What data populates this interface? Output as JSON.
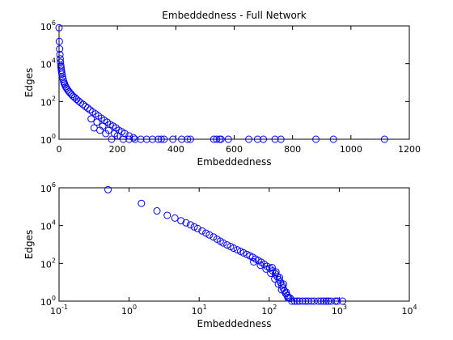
{
  "chart_data": [
    {
      "type": "scatter",
      "title": "Embeddedness - Full Network",
      "xlabel": "Embeddedness",
      "ylabel": "Edges",
      "x_scale": "linear",
      "y_scale": "log",
      "xlim": [
        0,
        1200
      ],
      "ylim": [
        1,
        1000000
      ],
      "x_ticks": [
        "0",
        "200",
        "400",
        "600",
        "800",
        "1000",
        "1200"
      ],
      "y_ticks": [
        {
          "base": "10",
          "exp": "0"
        },
        {
          "base": "10",
          "exp": "2"
        },
        {
          "base": "10",
          "exp": "4"
        },
        {
          "base": "10",
          "exp": "6"
        }
      ],
      "marker": "open-circle",
      "marker_color": "#0000ff",
      "series": [
        {
          "points": [
            [
              0,
              800000
            ],
            [
              1,
              150000
            ],
            [
              2,
              60000
            ],
            [
              3,
              30000
            ],
            [
              4,
              18000
            ],
            [
              5,
              12000
            ],
            [
              6,
              8000
            ],
            [
              7,
              6000
            ],
            [
              8,
              4500
            ],
            [
              9,
              3500
            ],
            [
              10,
              2800
            ],
            [
              12,
              2000
            ],
            [
              14,
              1500
            ],
            [
              16,
              1100
            ],
            [
              18,
              900
            ],
            [
              20,
              750
            ],
            [
              23,
              600
            ],
            [
              26,
              500
            ],
            [
              30,
              400
            ],
            [
              34,
              330
            ],
            [
              38,
              280
            ],
            [
              43,
              230
            ],
            [
              48,
              190
            ],
            [
              54,
              160
            ],
            [
              60,
              130
            ],
            [
              67,
              105
            ],
            [
              74,
              85
            ],
            [
              82,
              70
            ],
            [
              90,
              55
            ],
            [
              98,
              45
            ],
            [
              106,
              36
            ],
            [
              115,
              28
            ],
            [
              125,
              22
            ],
            [
              135,
              17
            ],
            [
              145,
              13
            ],
            [
              155,
              10
            ],
            [
              165,
              8
            ],
            [
              175,
              6
            ],
            [
              185,
              5
            ],
            [
              195,
              4
            ],
            [
              205,
              3
            ],
            [
              215,
              2.5
            ],
            [
              225,
              2
            ],
            [
              240,
              1.5
            ],
            [
              255,
              1.2
            ],
            [
              110,
              12
            ],
            [
              130,
              8
            ],
            [
              150,
              5
            ],
            [
              170,
              3
            ],
            [
              190,
              2
            ],
            [
              120,
              4
            ],
            [
              140,
              3
            ],
            [
              160,
              2
            ],
            [
              200,
              1.5
            ],
            [
              180,
              1
            ],
            [
              220,
              1
            ],
            [
              240,
              1
            ],
            [
              260,
              1
            ],
            [
              280,
              1
            ],
            [
              300,
              1
            ],
            [
              320,
              1
            ],
            [
              340,
              1
            ],
            [
              350,
              1
            ],
            [
              360,
              1
            ],
            [
              390,
              1
            ],
            [
              420,
              1
            ],
            [
              440,
              1
            ],
            [
              450,
              1
            ],
            [
              530,
              1
            ],
            [
              540,
              1
            ],
            [
              550,
              1
            ],
            [
              555,
              1
            ],
            [
              580,
              1
            ],
            [
              650,
              1
            ],
            [
              680,
              1
            ],
            [
              700,
              1
            ],
            [
              740,
              1
            ],
            [
              760,
              1
            ],
            [
              880,
              1
            ],
            [
              940,
              1
            ],
            [
              1115,
              1
            ]
          ]
        }
      ]
    },
    {
      "type": "scatter",
      "title": "",
      "xlabel": "Embeddedness",
      "ylabel": "Edges",
      "x_scale": "log",
      "y_scale": "log",
      "xlim": [
        0.1,
        10000
      ],
      "ylim": [
        1,
        1000000
      ],
      "x_ticks": [
        {
          "base": "10",
          "exp": "-1"
        },
        {
          "base": "10",
          "exp": "0"
        },
        {
          "base": "10",
          "exp": "1"
        },
        {
          "base": "10",
          "exp": "2"
        },
        {
          "base": "10",
          "exp": "3"
        },
        {
          "base": "10",
          "exp": "4"
        }
      ],
      "y_ticks": [
        {
          "base": "10",
          "exp": "0"
        },
        {
          "base": "10",
          "exp": "2"
        },
        {
          "base": "10",
          "exp": "4"
        },
        {
          "base": "10",
          "exp": "6"
        }
      ],
      "marker": "open-circle",
      "marker_color": "#0000ff",
      "series": [
        {
          "points": [
            [
              0.5,
              800000
            ],
            [
              1.5,
              150000
            ],
            [
              2.5,
              60000
            ],
            [
              3.5,
              35000
            ],
            [
              4.5,
              25000
            ],
            [
              5.5,
              18000
            ],
            [
              6.5,
              14000
            ],
            [
              7.5,
              11000
            ],
            [
              8.5,
              8500
            ],
            [
              9.5,
              7000
            ],
            [
              11,
              5200
            ],
            [
              12.5,
              4000
            ],
            [
              14,
              3200
            ],
            [
              16,
              2500
            ],
            [
              18,
              1900
            ],
            [
              20,
              1500
            ],
            [
              22,
              1200
            ],
            [
              25,
              950
            ],
            [
              28,
              780
            ],
            [
              31,
              640
            ],
            [
              35,
              520
            ],
            [
              39,
              430
            ],
            [
              43,
              360
            ],
            [
              48,
              300
            ],
            [
              53,
              250
            ],
            [
              58,
              210
            ],
            [
              64,
              170
            ],
            [
              70,
              140
            ],
            [
              77,
              115
            ],
            [
              85,
              90
            ],
            [
              93,
              70
            ],
            [
              102,
              55
            ],
            [
              112,
              40
            ],
            [
              122,
              28
            ],
            [
              130,
              20
            ],
            [
              138,
              14
            ],
            [
              145,
              10
            ],
            [
              152,
              7
            ],
            [
              158,
              5
            ],
            [
              165,
              3.5
            ],
            [
              172,
              2.5
            ],
            [
              180,
              2
            ],
            [
              190,
              1.6
            ],
            [
              200,
              1.4
            ],
            [
              60,
              120
            ],
            [
              75,
              80
            ],
            [
              90,
              50
            ],
            [
              105,
              30
            ],
            [
              120,
              15
            ],
            [
              135,
              8
            ],
            [
              150,
              4
            ],
            [
              110,
              60
            ],
            [
              125,
              35
            ],
            [
              140,
              18
            ],
            [
              160,
              8
            ],
            [
              175,
              3
            ],
            [
              185,
              1.5
            ],
            [
              210,
              1
            ],
            [
              230,
              1
            ],
            [
              250,
              1
            ],
            [
              270,
              1
            ],
            [
              300,
              1
            ],
            [
              330,
              1
            ],
            [
              360,
              1
            ],
            [
              400,
              1
            ],
            [
              440,
              1
            ],
            [
              500,
              1
            ],
            [
              550,
              1
            ],
            [
              600,
              1
            ],
            [
              650,
              1
            ],
            [
              700,
              1
            ],
            [
              760,
              1
            ],
            [
              880,
              1
            ],
            [
              940,
              1
            ],
            [
              1115,
              1
            ]
          ]
        }
      ]
    }
  ]
}
